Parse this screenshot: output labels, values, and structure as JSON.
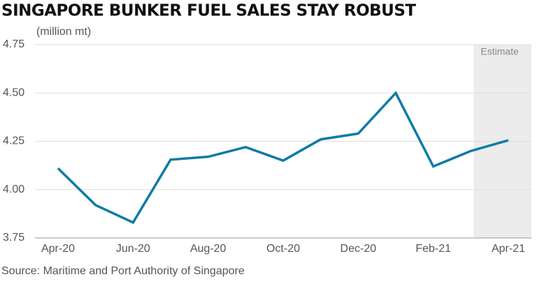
{
  "chart_data": {
    "type": "line",
    "title": "SINGAPORE BUNKER FUEL SALES STAY ROBUST",
    "y_label": "(million mt)",
    "source": "Source: Maritime and Port Authority of Singapore",
    "annotation": "Estimate",
    "categories": [
      "Apr-20",
      null,
      "Jun-20",
      null,
      "Aug-20",
      null,
      "Oct-20",
      null,
      "Dec-20",
      null,
      "Feb-21",
      null,
      "Apr-21"
    ],
    "series": [
      {
        "name": "Bunker fuel sales",
        "color": "#0f7ba5",
        "values": [
          4.11,
          3.92,
          3.83,
          4.155,
          4.17,
          4.22,
          4.15,
          4.26,
          4.29,
          4.5,
          4.12,
          4.2,
          4.255
        ]
      }
    ],
    "ylim": [
      3.75,
      4.75
    ],
    "yticks": [
      {
        "value": 3.75,
        "label": "3.75"
      },
      {
        "value": 4.0,
        "label": "4.00"
      },
      {
        "value": 4.25,
        "label": "4.25"
      },
      {
        "value": 4.5,
        "label": "4.50"
      },
      {
        "value": 4.75,
        "label": "4.75"
      }
    ],
    "grid": true
  }
}
